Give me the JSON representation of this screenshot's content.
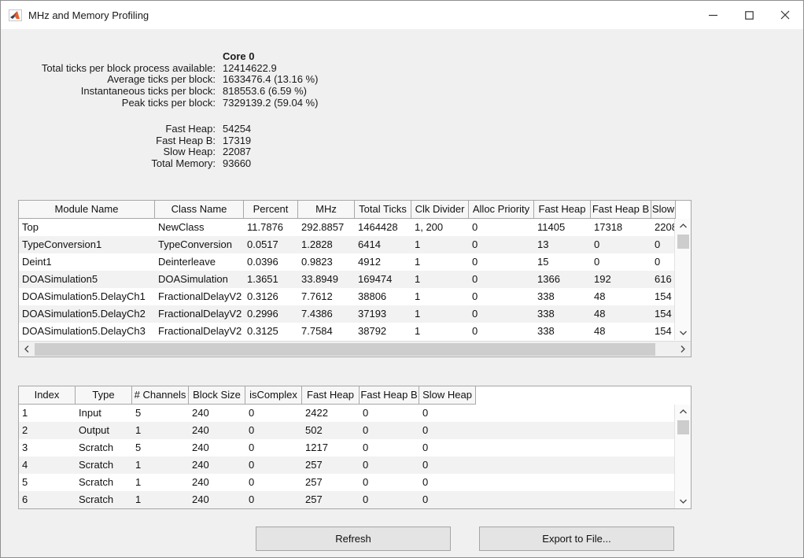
{
  "window": {
    "title": "MHz and Memory Profiling",
    "icons": {
      "app": "matlab-logo-icon",
      "minimize": "minimize-icon (–)",
      "maximize": "maximize-icon (□)",
      "close": "close-icon (✕)"
    }
  },
  "summary": {
    "core_header": "Core 0",
    "tick_stats": [
      {
        "label": "Total ticks per block process available:",
        "value": "12414622.9"
      },
      {
        "label": "Average ticks per block:",
        "value": "1633476.4 (13.16 %)"
      },
      {
        "label": "Instantaneous ticks per block:",
        "value": "818553.6 (6.59 %)"
      },
      {
        "label": "Peak ticks per block:",
        "value": "7329139.2 (59.04 %)"
      }
    ],
    "memory_stats": [
      {
        "label": "Fast Heap:",
        "value": "54254"
      },
      {
        "label": "Fast Heap B:",
        "value": "17319"
      },
      {
        "label": "Slow Heap:",
        "value": "22087"
      },
      {
        "label": "Total Memory:",
        "value": "93660"
      }
    ]
  },
  "module_table": {
    "columns": [
      "Module Name",
      "Class Name",
      "Percent",
      "MHz",
      "Total Ticks",
      "Clk Divider",
      "Alloc Priority",
      "Fast Heap",
      "Fast Heap B",
      "Slow"
    ],
    "rows": [
      [
        "Top",
        "NewClass",
        "11.7876",
        "292.8857",
        "1464428",
        "1, 200",
        "0",
        "11405",
        "17318",
        "2208"
      ],
      [
        "TypeConversion1",
        "TypeConversion",
        "0.0517",
        "1.2828",
        "6414",
        "1",
        "0",
        "13",
        "0",
        "0"
      ],
      [
        "Deint1",
        "Deinterleave",
        "0.0396",
        "0.9823",
        "4912",
        "1",
        "0",
        "15",
        "0",
        "0"
      ],
      [
        "DOASimulation5",
        "DOASimulation",
        "1.3651",
        "33.8949",
        "169474",
        "1",
        "0",
        "1366",
        "192",
        "616"
      ],
      [
        "DOASimulation5.DelayCh1",
        "FractionalDelayV2",
        "0.3126",
        "7.7612",
        "38806",
        "1",
        "0",
        "338",
        "48",
        "154"
      ],
      [
        "DOASimulation5.DelayCh2",
        "FractionalDelayV2",
        "0.2996",
        "7.4386",
        "37193",
        "1",
        "0",
        "338",
        "48",
        "154"
      ],
      [
        "DOASimulation5.DelayCh3",
        "FractionalDelayV2",
        "0.3125",
        "7.7584",
        "38792",
        "1",
        "0",
        "338",
        "48",
        "154"
      ]
    ]
  },
  "buffer_table": {
    "columns": [
      "Index",
      "Type",
      "# Channels",
      "Block Size",
      "isComplex",
      "Fast Heap",
      "Fast Heap B",
      "Slow Heap"
    ],
    "rows": [
      [
        "1",
        "Input",
        "5",
        "240",
        "0",
        "2422",
        "0",
        "0"
      ],
      [
        "2",
        "Output",
        "1",
        "240",
        "0",
        "502",
        "0",
        "0"
      ],
      [
        "3",
        "Scratch",
        "5",
        "240",
        "0",
        "1217",
        "0",
        "0"
      ],
      [
        "4",
        "Scratch",
        "1",
        "240",
        "0",
        "257",
        "0",
        "0"
      ],
      [
        "5",
        "Scratch",
        "1",
        "240",
        "0",
        "257",
        "0",
        "0"
      ],
      [
        "6",
        "Scratch",
        "1",
        "240",
        "0",
        "257",
        "0",
        "0"
      ]
    ]
  },
  "buttons": {
    "refresh": "Refresh",
    "export": "Export to File..."
  },
  "colors": {
    "window_bg": "#f0f0f0",
    "titlebar_bg": "#ffffff",
    "table_bg": "#ffffff",
    "zebra_row": "#f2f2f2",
    "table_border": "#a7a7a7",
    "scrollbar_thumb": "#cdcdcd",
    "button_bg": "#e4e4e4",
    "matlab_orange": "#e8642d",
    "matlab_dark": "#33425b"
  }
}
